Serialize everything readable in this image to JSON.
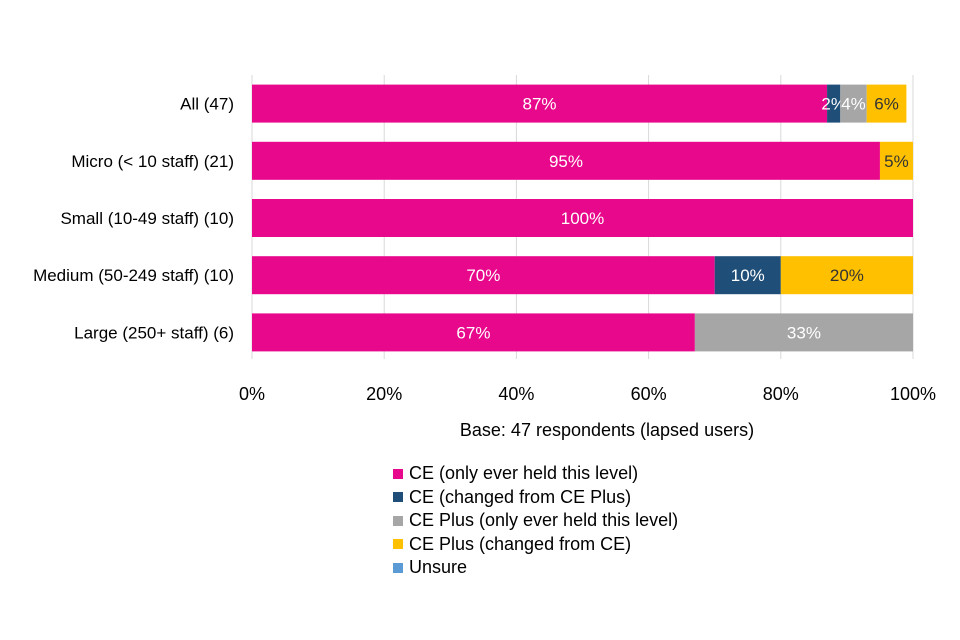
{
  "chart_data": {
    "type": "bar",
    "orientation": "horizontal",
    "stacked": true,
    "categories": [
      "All (47)",
      "Micro (< 10 staff) (21)",
      "Small (10-49 staff) (10)",
      "Medium (50-249 staff) (10)",
      "Large (250+ staff) (6)"
    ],
    "series": [
      {
        "name": "CE (only ever held this level)",
        "color": "#E8088B",
        "label_color": "#ffffff",
        "values": [
          87,
          95,
          100,
          70,
          67
        ]
      },
      {
        "name": "CE (changed from CE Plus)",
        "color": "#1F4E79",
        "label_color": "#ffffff",
        "values": [
          2,
          0,
          0,
          10,
          0
        ]
      },
      {
        "name": "CE Plus (only ever held this level)",
        "color": "#A6A6A6",
        "label_color": "#ffffff",
        "values": [
          4,
          0,
          0,
          0,
          33
        ]
      },
      {
        "name": "CE Plus (changed from CE)",
        "color": "#FFC000",
        "label_color": "#333333",
        "values": [
          6,
          5,
          0,
          20,
          0
        ]
      },
      {
        "name": "Unsure",
        "color": "#5B9BD5",
        "label_color": "#ffffff",
        "values": [
          0,
          0,
          0,
          0,
          0
        ]
      }
    ],
    "data_labels": [
      [
        "87%",
        "2%",
        "4%",
        "6%",
        ""
      ],
      [
        "95%",
        "",
        "",
        "5%",
        ""
      ],
      [
        "100%",
        "",
        "",
        "",
        ""
      ],
      [
        "70%",
        "10%",
        "",
        "20%",
        ""
      ],
      [
        "67%",
        "",
        "33%",
        "",
        ""
      ]
    ],
    "x_ticks": [
      "0%",
      "20%",
      "40%",
      "60%",
      "80%",
      "100%"
    ],
    "xlim": [
      0,
      100
    ],
    "xlabel": "Base: 47 respondents (lapsed users)",
    "ylabel": "",
    "title": "",
    "grid": true,
    "legend_position": "bottom"
  }
}
